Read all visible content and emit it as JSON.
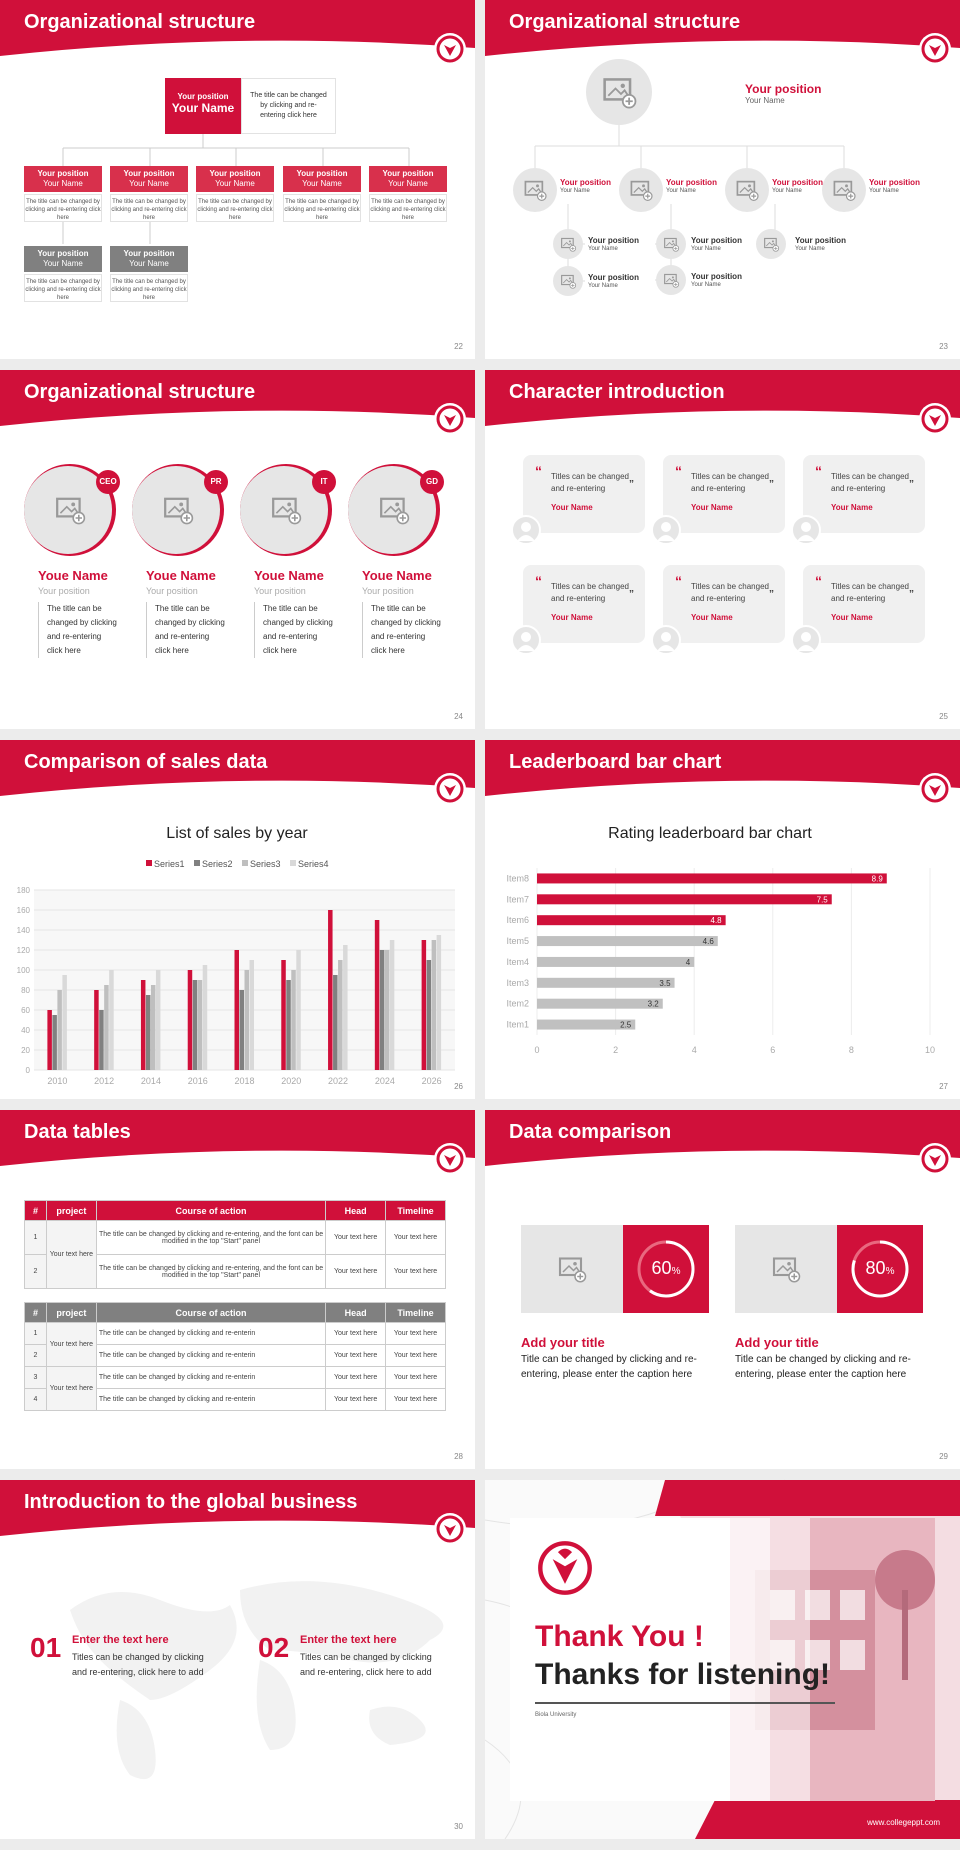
{
  "colors": {
    "accent": "#d0103a",
    "gray": "#808080",
    "light": "#e6e6e6"
  },
  "slides": {
    "s22": {
      "title": "Organizational structure",
      "page": "22",
      "top": {
        "position": "Your position",
        "name": "Your Name",
        "desc": "The title can be changed by clicking and re-entering click here"
      },
      "box_position": "Your position",
      "box_name": "Your Name",
      "box_desc": "The title can be changed by clicking and re-entering click here"
    },
    "s23": {
      "title": "Organizational structure",
      "page": "23",
      "top_position": "Your position",
      "top_name": "Your Name",
      "position": "Your position",
      "name": "Your Name"
    },
    "s24": {
      "title": "Organizational structure",
      "page": "24",
      "people": [
        {
          "tag": "CEO",
          "name": "Youe Name",
          "position": "Your position",
          "desc": "The title can be changed by clicking and re-entering click here"
        },
        {
          "tag": "PR",
          "name": "Youe Name",
          "position": "Your position",
          "desc": "The title can be changed by clicking and re-entering click here"
        },
        {
          "tag": "IT",
          "name": "Youe Name",
          "position": "Your position",
          "desc": "The title can be changed by clicking and re-entering click here"
        },
        {
          "tag": "GD",
          "name": "Youe Name",
          "position": "Your position",
          "desc": "The title can be changed by clicking and re-entering click here"
        }
      ]
    },
    "s25": {
      "title": "Character introduction",
      "page": "25",
      "quote": "Titles can be changed and re-entering",
      "name": "Your Name"
    },
    "s26": {
      "title": "Comparison of sales data",
      "page": "26"
    },
    "s27": {
      "title": "Leaderboard bar chart",
      "page": "27"
    },
    "s28": {
      "title": "Data tables",
      "page": "28",
      "headers": [
        "#",
        "project",
        "Course of action",
        "Head",
        "Timeline"
      ],
      "t1_project": "Your text here",
      "t1_rows": [
        {
          "n": "1",
          "action": "The title can be changed by clicking and re-entering, and the font can be modified in the top \"Start\" panel",
          "head": "Your text here",
          "time": "Your text here"
        },
        {
          "n": "2",
          "action": "The title can be changed by clicking and re-entering, and the font can be modified in the top \"Start\" panel",
          "head": "Your text here",
          "time": "Your text here"
        }
      ],
      "t2_project": "Your text here",
      "t2_rows": [
        {
          "n": "1",
          "action": "The title can be changed by clicking and re-enterin",
          "head": "Your text here",
          "time": "Your text here"
        },
        {
          "n": "2",
          "action": "The title can be changed by clicking and re-enterin",
          "head": "Your text here",
          "time": "Your text here"
        },
        {
          "n": "3",
          "action": "The title can be changed by clicking and re-enterin",
          "head": "Your text here",
          "time": "Your text here"
        },
        {
          "n": "4",
          "action": "The title can be changed by clicking and re-enterin",
          "head": "Your text here",
          "time": "Your text here"
        }
      ]
    },
    "s29": {
      "title": "Data comparison",
      "page": "29",
      "items": [
        {
          "pct": "60",
          "unit": "%",
          "value": 0.6,
          "title": "Add your title",
          "desc": "Title can be changed by clicking and re-entering, please enter the caption here"
        },
        {
          "pct": "80",
          "unit": "%",
          "value": 0.8,
          "title": "Add your title",
          "desc": "Title can be changed by clicking and re-entering, please enter the caption here"
        }
      ]
    },
    "s30": {
      "title": "Introduction to the global business",
      "page": "30",
      "items": [
        {
          "num": "01",
          "title": "Enter the text here",
          "desc": "Titles can be changed by clicking and re-entering, click here to add"
        },
        {
          "num": "02",
          "title": "Enter the text here",
          "desc": "Titles can be changed by clicking and re-entering, click here to add"
        }
      ]
    },
    "s31": {
      "thanks": "Thank You !",
      "listening": "Thanks for listening!",
      "university": "Biola University",
      "url": "www.collegeppt.com"
    }
  },
  "chart_data": [
    {
      "type": "bar",
      "title": "List of sales by year",
      "categories": [
        "2010",
        "2012",
        "2014",
        "2016",
        "2018",
        "2020",
        "2022",
        "2024",
        "2026"
      ],
      "series": [
        {
          "name": "Series1",
          "color": "#d0103a",
          "values": [
            60,
            80,
            90,
            100,
            120,
            110,
            160,
            150,
            130
          ]
        },
        {
          "name": "Series2",
          "color": "#808080",
          "values": [
            55,
            60,
            75,
            90,
            80,
            90,
            95,
            120,
            110
          ]
        },
        {
          "name": "Series3",
          "color": "#bfbfbf",
          "values": [
            80,
            85,
            85,
            90,
            100,
            100,
            110,
            120,
            130
          ]
        },
        {
          "name": "Series4",
          "color": "#d9d9d9",
          "values": [
            95,
            100,
            100,
            105,
            110,
            120,
            125,
            130,
            135
          ]
        }
      ],
      "ylim": [
        0,
        180
      ],
      "yticks": [
        0,
        20,
        40,
        60,
        80,
        100,
        120,
        140,
        160,
        180
      ],
      "legend": "top"
    },
    {
      "type": "bar",
      "orientation": "horizontal",
      "title": "Rating leaderboard bar chart",
      "categories": [
        "Item8",
        "Item7",
        "Item6",
        "Item5",
        "Item4",
        "Item3",
        "Item2",
        "Item1"
      ],
      "values": [
        8.9,
        7.5,
        4.8,
        4.6,
        4,
        3.5,
        3.2,
        2.5
      ],
      "labels": [
        "8.9",
        "7.5",
        "4.8",
        "4.6",
        "4",
        "3.5",
        "3.2",
        "2.5"
      ],
      "xlim": [
        0,
        10
      ],
      "xticks": [
        "0",
        "2",
        "4",
        "6",
        "8",
        "10"
      ]
    }
  ]
}
